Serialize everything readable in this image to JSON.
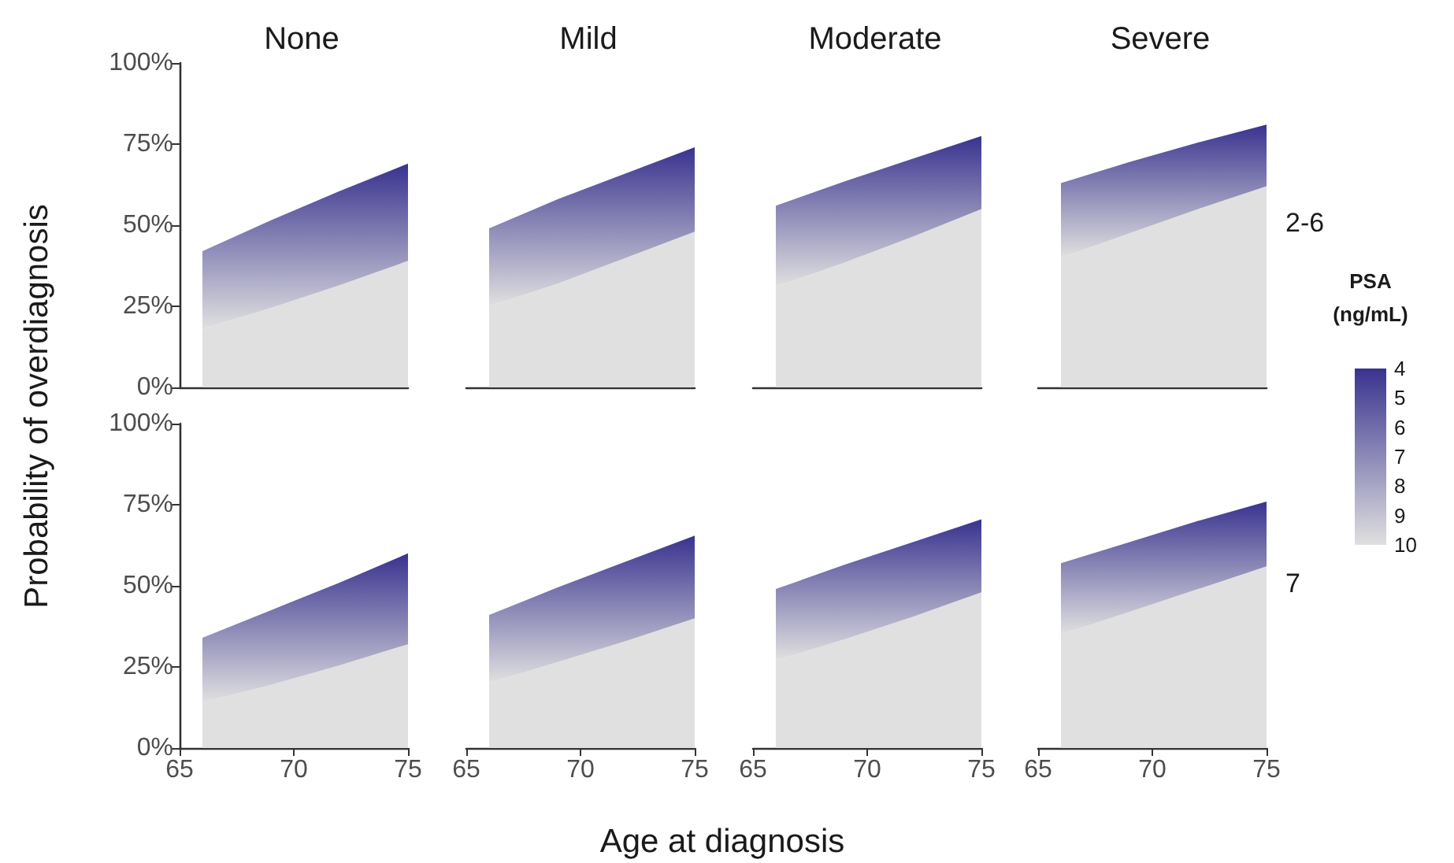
{
  "chart_data": [
    {
      "type": "area",
      "title": "None",
      "ylabel": "Probability of overdiagnosis",
      "tick_labels": "y",
      "x": [
        66,
        69,
        72,
        75
      ],
      "xlim": [
        65,
        75
      ],
      "ylim": [
        0,
        100
      ],
      "yticks": [
        {
          "value": 0,
          "label": "0%"
        },
        {
          "value": 25,
          "label": "25%"
        },
        {
          "value": 50,
          "label": "50%"
        },
        {
          "value": 75,
          "label": "75%"
        },
        {
          "value": 100,
          "label": "100%"
        }
      ],
      "grid": false,
      "series": [
        {
          "color": "#e0e0e0",
          "values": [
            18,
            24.5,
            31.5,
            39
          ]
        },
        {
          "color": "#39338f",
          "values": [
            42,
            51.5,
            60.5,
            69
          ]
        }
      ]
    },
    {
      "type": "area",
      "title": "Mild",
      "tick_labels": false,
      "x": [
        66,
        69,
        72,
        75
      ],
      "xlim": [
        65,
        75
      ],
      "ylim": [
        0,
        100
      ],
      "grid": false,
      "series": [
        {
          "color": "#e0e0e0",
          "values": [
            25,
            32,
            40,
            48
          ]
        },
        {
          "color": "#39338f",
          "values": [
            49,
            58,
            66,
            74
          ]
        }
      ]
    },
    {
      "type": "area",
      "title": "Moderate",
      "tick_labels": false,
      "x": [
        66,
        69,
        72,
        75
      ],
      "xlim": [
        65,
        75
      ],
      "ylim": [
        0,
        100
      ],
      "grid": false,
      "series": [
        {
          "color": "#e0e0e0",
          "values": [
            31,
            38.5,
            46.5,
            55
          ]
        },
        {
          "color": "#39338f",
          "values": [
            56,
            63.5,
            70.5,
            77.5
          ]
        }
      ]
    },
    {
      "type": "area",
      "title": "Severe",
      "annotations": [
        "2-6"
      ],
      "clabel": "PSA\n(ng/mL)",
      "clim": [
        4,
        10
      ],
      "cticks": [
        4,
        5,
        6,
        7,
        8,
        9,
        10
      ],
      "tick_labels": false,
      "x": [
        66,
        69,
        72,
        75
      ],
      "xlim": [
        65,
        75
      ],
      "ylim": [
        0,
        100
      ],
      "grid": false,
      "series": [
        {
          "color": "#e0e0e0",
          "values": [
            40,
            47.5,
            55,
            62
          ]
        },
        {
          "color": "#39338f",
          "values": [
            63,
            69.5,
            75.5,
            81
          ]
        }
      ]
    },
    {
      "type": "area",
      "xlabel": "Age at diagnosis",
      "x": [
        66,
        69,
        72,
        75
      ],
      "xlim": [
        65,
        75
      ],
      "xticks": [
        65,
        70,
        75
      ],
      "ylim": [
        0,
        100
      ],
      "yticks": [
        {
          "value": 0,
          "label": "0%"
        },
        {
          "value": 25,
          "label": "25%"
        },
        {
          "value": 50,
          "label": "50%"
        },
        {
          "value": 75,
          "label": "75%"
        },
        {
          "value": 100,
          "label": "100%"
        }
      ],
      "grid": false,
      "series": [
        {
          "color": "#e0e0e0",
          "values": [
            14,
            19.5,
            25.5,
            32
          ]
        },
        {
          "color": "#39338f",
          "values": [
            34,
            42.5,
            51,
            60
          ]
        }
      ]
    },
    {
      "type": "area",
      "tick_labels": "x",
      "x": [
        66,
        69,
        72,
        75
      ],
      "xlim": [
        65,
        75
      ],
      "xticks": [
        65,
        70,
        75
      ],
      "ylim": [
        0,
        100
      ],
      "grid": false,
      "series": [
        {
          "color": "#e0e0e0",
          "values": [
            20,
            26.5,
            33,
            40
          ]
        },
        {
          "color": "#39338f",
          "values": [
            41,
            49.5,
            57.5,
            65.5
          ]
        }
      ]
    },
    {
      "type": "area",
      "tick_labels": "x",
      "x": [
        66,
        69,
        72,
        75
      ],
      "xlim": [
        65,
        75
      ],
      "xticks": [
        65,
        70,
        75
      ],
      "ylim": [
        0,
        100
      ],
      "grid": false,
      "series": [
        {
          "color": "#e0e0e0",
          "values": [
            27,
            33.5,
            40.5,
            48
          ]
        },
        {
          "color": "#39338f",
          "values": [
            49,
            56.5,
            63.5,
            70.5
          ]
        }
      ]
    },
    {
      "type": "area",
      "annotations": [
        "7"
      ],
      "tick_labels": "x",
      "x": [
        66,
        69,
        72,
        75
      ],
      "xlim": [
        65,
        75
      ],
      "xticks": [
        65,
        70,
        75
      ],
      "ylim": [
        0,
        100
      ],
      "grid": false,
      "series": [
        {
          "color": "#e0e0e0",
          "values": [
            35,
            42,
            49,
            56
          ]
        },
        {
          "color": "#39338f",
          "values": [
            57,
            63.5,
            70,
            76
          ]
        }
      ]
    }
  ]
}
